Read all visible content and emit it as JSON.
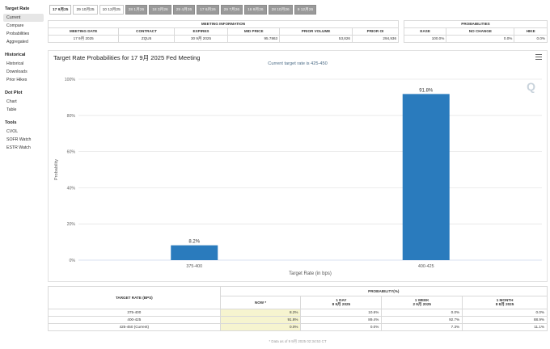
{
  "sidebar": {
    "groups": [
      {
        "heading": "Target Rate",
        "items": [
          "Current",
          "Compare",
          "Probabilities",
          "Aggregated"
        ]
      },
      {
        "heading": "Historical",
        "items": [
          "Historical",
          "Downloads",
          "Prior Hikes"
        ]
      },
      {
        "heading": "Dot Plot",
        "items": [
          "Chart",
          "Table"
        ]
      },
      {
        "heading": "Tools",
        "items": [
          "CVOL",
          "SOFR Watch",
          "ESTR Watch"
        ]
      }
    ],
    "active": "Current"
  },
  "tabs": [
    "17 9月25",
    "29 10月25",
    "10 12月25",
    "28 1月26",
    "18 3月26",
    "29 4月26",
    "17 6月26",
    "29 7月26",
    "16 9月26",
    "28 10月26",
    "9 12月26"
  ],
  "meeting_info": {
    "title": "MEETING INFORMATION",
    "headers": [
      "MEETING DATE",
      "CONTRACT",
      "EXPIRES",
      "MID PRICE",
      "PRIOR VOLUME",
      "PRIOR OI"
    ],
    "row": [
      "17 9月 2025",
      "ZQU5",
      "30 9月 2025",
      "95.7863",
      "53,826",
      "294,936"
    ]
  },
  "probabilities_box": {
    "title": "PROBABILITIES",
    "headers": [
      "EASE",
      "NO CHANGE",
      "HIKE"
    ],
    "row": [
      "100.0%",
      "0.0%",
      "0.0%"
    ]
  },
  "chart": {
    "title": "Target Rate Probabilities for 17 9月 2025 Fed Meeting",
    "subtitle": "Current target rate is 425-450",
    "watermark": "Q",
    "accent": "#2a7bbd"
  },
  "chart_data": {
    "type": "bar",
    "categories": [
      "375-400",
      "400-425"
    ],
    "values": [
      8.2,
      91.8
    ],
    "data_labels": [
      "8.2%",
      "91.8%"
    ],
    "xlabel": "Target Rate (in bps)",
    "ylabel": "Probability",
    "ylim": [
      0,
      100
    ],
    "yticks": [
      "0%",
      "20%",
      "40%",
      "60%",
      "80%",
      "100%"
    ],
    "grid": true
  },
  "prob_table": {
    "rate_header": "TARGET RATE (BPS)",
    "group_header": "PROBABILITY(%)",
    "columns": [
      {
        "line1": "NOW *",
        "line2": ""
      },
      {
        "line1": "1 DAY",
        "line2": "8 9月 2025"
      },
      {
        "line1": "1 WEEK",
        "line2": "2 9月 2025"
      },
      {
        "line1": "1 MONTH",
        "line2": "8 8月 2025"
      }
    ],
    "rows": [
      {
        "rate": "375-400",
        "values": [
          "8.2%",
          "10.6%",
          "0.0%",
          "0.0%"
        ]
      },
      {
        "rate": "400-425",
        "values": [
          "91.8%",
          "89.4%",
          "92.7%",
          "88.9%"
        ]
      },
      {
        "rate": "425-450 (Current)",
        "values": [
          "0.0%",
          "0.0%",
          "7.3%",
          "11.1%"
        ]
      }
    ]
  },
  "footnote": "* Data as of 9 9月 2025 02:34:53 CT"
}
